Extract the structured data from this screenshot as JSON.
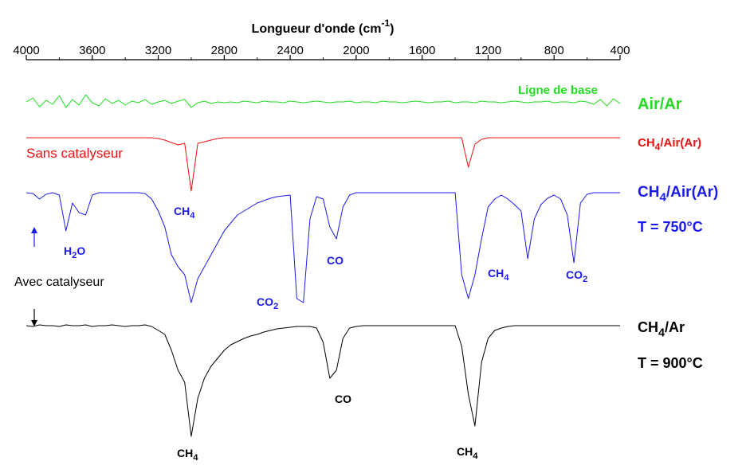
{
  "chart_data": {
    "type": "line",
    "title": {
      "text": "Longueur d'onde (cm",
      "sup": "-1",
      "tail": ")"
    },
    "xlim": [
      4000,
      400
    ],
    "xticks": [
      4000,
      3600,
      3200,
      2800,
      2400,
      2000,
      1600,
      1200,
      800,
      400
    ],
    "ylim": [
      0,
      500
    ],
    "x": [
      4000,
      3960,
      3920,
      3880,
      3840,
      3800,
      3760,
      3720,
      3680,
      3640,
      3600,
      3560,
      3520,
      3480,
      3440,
      3400,
      3360,
      3320,
      3280,
      3240,
      3200,
      3160,
      3120,
      3080,
      3040,
      3000,
      2960,
      2920,
      2880,
      2840,
      2800,
      2760,
      2720,
      2680,
      2640,
      2600,
      2560,
      2520,
      2480,
      2440,
      2400,
      2360,
      2320,
      2280,
      2240,
      2200,
      2160,
      2120,
      2080,
      2040,
      2000,
      1960,
      1920,
      1880,
      1840,
      1800,
      1760,
      1720,
      1680,
      1640,
      1600,
      1560,
      1520,
      1480,
      1440,
      1400,
      1360,
      1320,
      1280,
      1240,
      1200,
      1160,
      1120,
      1080,
      1040,
      1000,
      960,
      920,
      880,
      840,
      800,
      760,
      720,
      680,
      640,
      600,
      560,
      520,
      480,
      440,
      400
    ],
    "series": [
      {
        "color": "#22dd22",
        "values": [
          447,
          452,
          441,
          449,
          444,
          455,
          440,
          450,
          443,
          456,
          446,
          442,
          451,
          445,
          449,
          443,
          448,
          446,
          450,
          444,
          447,
          449,
          445,
          448,
          450,
          440,
          446,
          448,
          445,
          447,
          446,
          447,
          446,
          448,
          447,
          446,
          448,
          447,
          447,
          446,
          448,
          447,
          446,
          447,
          448,
          447,
          446,
          447,
          447,
          448,
          446,
          447,
          447,
          446,
          448,
          447,
          447,
          446,
          447,
          448,
          447,
          446,
          447,
          447,
          448,
          446,
          447,
          447,
          446,
          448,
          447,
          447,
          446,
          447,
          448,
          447,
          446,
          447,
          447,
          448,
          446,
          447,
          447,
          446,
          448,
          447,
          444,
          450,
          442,
          451,
          445
        ]
      },
      {
        "color": "#ee1111",
        "values": [
          402,
          402,
          402,
          402,
          402,
          402,
          402,
          402,
          402,
          402,
          402,
          402,
          402,
          402,
          402,
          402,
          402,
          402,
          402,
          402,
          401,
          399,
          396,
          393,
          395,
          335,
          395,
          397,
          399,
          401,
          402,
          402,
          402,
          402,
          402,
          402,
          402,
          402,
          402,
          402,
          402,
          402,
          402,
          402,
          402,
          402,
          402,
          402,
          402,
          402,
          402,
          402,
          402,
          402,
          402,
          402,
          402,
          402,
          402,
          402,
          402,
          402,
          402,
          402,
          402,
          402,
          402,
          365,
          394,
          400,
          402,
          402,
          402,
          402,
          402,
          402,
          402,
          402,
          402,
          402,
          402,
          402,
          402,
          402,
          402,
          402,
          402,
          402,
          402,
          402,
          402
        ]
      },
      {
        "color": "#1a1aee",
        "values": [
          333,
          332,
          325,
          331,
          333,
          330,
          285,
          320,
          308,
          305,
          330,
          333,
          333,
          333,
          333,
          333,
          333,
          333,
          332,
          325,
          310,
          290,
          255,
          240,
          230,
          195,
          225,
          240,
          255,
          270,
          285,
          295,
          305,
          310,
          315,
          320,
          323,
          326,
          328,
          329,
          330,
          200,
          195,
          300,
          328,
          325,
          290,
          275,
          315,
          330,
          333,
          333,
          333,
          333,
          333,
          333,
          333,
          333,
          333,
          333,
          333,
          333,
          333,
          333,
          333,
          333,
          230,
          200,
          230,
          275,
          315,
          325,
          330,
          325,
          318,
          310,
          250,
          300,
          318,
          326,
          330,
          325,
          305,
          245,
          320,
          331,
          333,
          333,
          333,
          333,
          333
        ]
      },
      {
        "color": "#000000",
        "values": [
          166,
          165,
          167,
          166,
          166,
          165,
          167,
          166,
          166,
          167,
          165,
          166,
          166,
          167,
          166,
          165,
          166,
          166,
          167,
          165,
          160,
          155,
          135,
          110,
          95,
          27,
          75,
          100,
          115,
          125,
          135,
          142,
          146,
          150,
          153,
          155,
          158,
          160,
          162,
          163,
          164,
          165,
          165,
          165,
          163,
          145,
          100,
          110,
          150,
          163,
          165,
          166,
          166,
          166,
          166,
          166,
          166,
          166,
          166,
          166,
          166,
          166,
          166,
          166,
          166,
          166,
          140,
          80,
          40,
          120,
          150,
          160,
          163,
          165,
          166,
          166,
          166,
          166,
          166,
          166,
          166,
          166,
          166,
          166,
          166,
          166,
          166,
          166,
          166,
          166,
          166
        ]
      }
    ],
    "annotations": [
      {
        "text": "Ligne de base",
        "color": "#22dd22"
      },
      {
        "text": "Air/Ar",
        "color": "#22dd22"
      },
      {
        "text": "CH",
        "sub": "4",
        "tail": "/Air(Ar)",
        "color": "#ee1111"
      },
      {
        "text": "Sans catalyseur",
        "color": "#ee1111"
      },
      {
        "text": "CH",
        "sub": "4",
        "tail": "/Air(Ar)",
        "color": "#1a1aee"
      },
      {
        "text": "T = 750°C",
        "color": "#1a1aee"
      },
      {
        "text": "CH",
        "sub": "4",
        "color": "#1a1aee"
      },
      {
        "text": "H",
        "sub": "2",
        "tail": "O",
        "color": "#1a1aee"
      },
      {
        "text": "CO",
        "color": "#1a1aee"
      },
      {
        "text": "CO",
        "sub": "2",
        "color": "#1a1aee"
      },
      {
        "text": "CH",
        "sub": "4",
        "color": "#1a1aee"
      },
      {
        "text": "CO",
        "sub": "2",
        "color": "#1a1aee"
      },
      {
        "text": "Avec catalyseur",
        "color": "#000000"
      },
      {
        "text": "CH",
        "sub": "4",
        "tail": "/Ar",
        "color": "#000000"
      },
      {
        "text": "T = 900°C",
        "color": "#000000"
      },
      {
        "text": "CO",
        "color": "#000000"
      },
      {
        "text": "CH",
        "sub": "4",
        "color": "#000000"
      },
      {
        "text": "CH",
        "sub": "4",
        "color": "#000000"
      }
    ]
  }
}
